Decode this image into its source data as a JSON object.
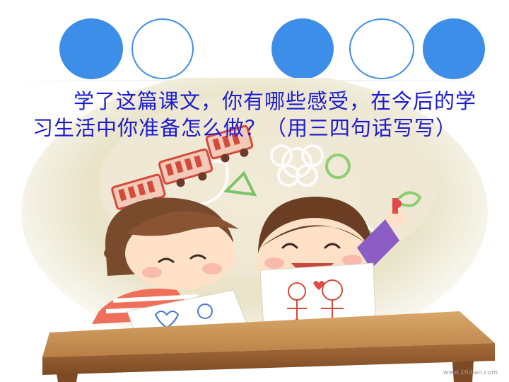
{
  "slide": {
    "question_text": "学了这篇课文，你有哪些感受，在今后的学习生活中你准备怎么做？（用三四句话写写）",
    "watermark": "www.16dian.com"
  },
  "colors": {
    "accent_blue": "#3d8ee8",
    "question_text": "#1b1bd1"
  },
  "decor": {
    "circles": [
      "filled",
      "outline",
      "filled",
      "outline",
      "filled"
    ]
  }
}
